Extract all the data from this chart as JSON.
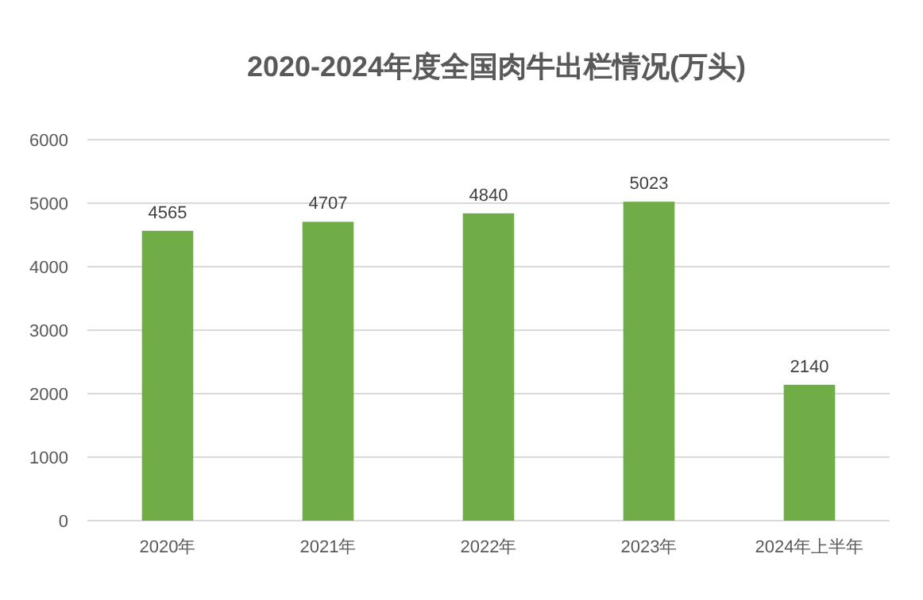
{
  "chart_data": {
    "type": "bar",
    "title": "2020-2024年度全国肉牛出栏情况(万头)",
    "categories": [
      "2020年",
      "2021年",
      "2022年",
      "2023年",
      "2024年上半年"
    ],
    "values": [
      4565,
      4707,
      4840,
      5023,
      2140
    ],
    "color": "#70ad47",
    "ylim": [
      0,
      6000
    ],
    "yticks": [
      0,
      1000,
      2000,
      3000,
      4000,
      5000,
      6000
    ],
    "grid": "y",
    "data_labels": true
  }
}
